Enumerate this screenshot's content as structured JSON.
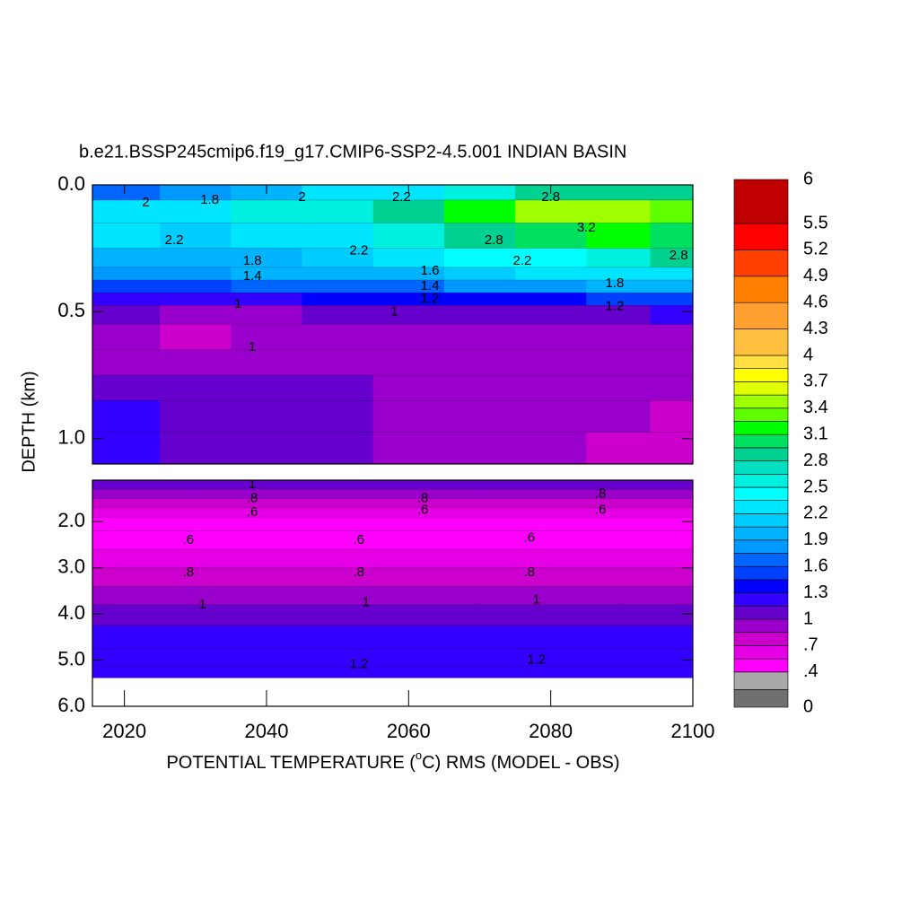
{
  "chart_data": {
    "type": "contour",
    "title": "b.e21.BSSP245cmip6.f19_g17.CMIP6-SSP2-4.5.001 INDIAN BASIN",
    "xlabel": {
      "before": "POTENTIAL TEMPERATURE (",
      "sup": "o",
      "after": "C) RMS (MODEL - OBS)"
    },
    "ylabel": "DEPTH (km)",
    "xlim": [
      2015.5,
      2100
    ],
    "xticks": [
      2020,
      2040,
      2060,
      2080,
      2100
    ],
    "panels": [
      {
        "ylim": [
          0,
          1.1
        ],
        "yticks": [
          {
            "value": 0,
            "label": "0.0"
          },
          {
            "value": 0.5,
            "label": "0.5"
          },
          {
            "value": 1,
            "label": "1.0"
          }
        ],
        "x": [
          2020,
          2030,
          2040,
          2050,
          2060,
          2070,
          2080,
          2090,
          2098
        ],
        "y": [
          0.02,
          0.1,
          0.2,
          0.3,
          0.35,
          0.4,
          0.45,
          0.5,
          0.6,
          0.7,
          0.8,
          0.9,
          1.05
        ],
        "values": [
          [
            1.6,
            1.8,
            2.0,
            2.2,
            2.3,
            2.6,
            2.8,
            2.9,
            2.8
          ],
          [
            2.2,
            2.3,
            2.5,
            2.6,
            2.9,
            3.2,
            3.5,
            3.4,
            3.3
          ],
          [
            2.2,
            2.1,
            2.2,
            2.3,
            2.5,
            2.8,
            3.0,
            3.1,
            3.0
          ],
          [
            2.0,
            2.0,
            2.0,
            2.1,
            2.2,
            2.4,
            2.4,
            2.6,
            2.8
          ],
          [
            1.8,
            1.8,
            1.9,
            1.9,
            2.0,
            2.1,
            2.2,
            2.3,
            2.3
          ],
          [
            1.5,
            1.5,
            1.6,
            1.6,
            1.7,
            1.8,
            1.8,
            1.9,
            1.9
          ],
          [
            1.2,
            1.2,
            1.2,
            1.3,
            1.3,
            1.4,
            1.4,
            1.5,
            1.5
          ],
          [
            1.0,
            0.95,
            0.95,
            1.0,
            1.0,
            1.05,
            1.1,
            1.1,
            1.2
          ],
          [
            0.9,
            0.8,
            0.85,
            0.85,
            0.9,
            0.9,
            0.95,
            0.95,
            0.95
          ],
          [
            0.95,
            0.9,
            0.9,
            0.9,
            0.9,
            0.9,
            0.9,
            0.9,
            0.9
          ],
          [
            1.1,
            1.05,
            1.0,
            1.0,
            0.95,
            0.9,
            0.9,
            0.9,
            0.9
          ],
          [
            1.15,
            1.1,
            1.05,
            1.0,
            0.95,
            0.9,
            0.9,
            0.85,
            0.8
          ],
          [
            1.15,
            1.1,
            1.0,
            1.0,
            0.95,
            0.9,
            0.85,
            0.8,
            0.75
          ]
        ],
        "contour_labels": [
          {
            "x": 2023,
            "y": 0.07,
            "value": 2
          },
          {
            "x": 2032,
            "y": 0.06,
            "value": 1.8
          },
          {
            "x": 2045,
            "y": 0.05,
            "value": 2
          },
          {
            "x": 2059,
            "y": 0.05,
            "value": 2.2
          },
          {
            "x": 2080,
            "y": 0.05,
            "value": 2.8
          },
          {
            "x": 2027,
            "y": 0.22,
            "value": 2.2
          },
          {
            "x": 2053,
            "y": 0.26,
            "value": 2.2
          },
          {
            "x": 2076,
            "y": 0.3,
            "value": 2.2
          },
          {
            "x": 2098,
            "y": 0.28,
            "value": 2.8
          },
          {
            "x": 2072,
            "y": 0.22,
            "value": 2.8
          },
          {
            "x": 2085,
            "y": 0.17,
            "value": 3.2
          },
          {
            "x": 2038,
            "y": 0.3,
            "value": 1.8
          },
          {
            "x": 2038,
            "y": 0.36,
            "value": 1.4
          },
          {
            "x": 2063,
            "y": 0.34,
            "value": 1.6
          },
          {
            "x": 2063,
            "y": 0.4,
            "value": 1.4
          },
          {
            "x": 2063,
            "y": 0.45,
            "value": 1.2
          },
          {
            "x": 2089,
            "y": 0.39,
            "value": 1.8
          },
          {
            "x": 2089,
            "y": 0.48,
            "value": 1.2
          },
          {
            "x": 2036,
            "y": 0.47,
            "value": 1
          },
          {
            "x": 2058,
            "y": 0.5,
            "value": 1
          },
          {
            "x": 2038,
            "y": 0.64,
            "value": 1
          }
        ]
      },
      {
        "ylim": [
          1.1,
          6.0
        ],
        "yticks": [
          {
            "value": 2,
            "label": "2.0"
          },
          {
            "value": 3,
            "label": "3.0"
          },
          {
            "value": 4,
            "label": "4.0"
          },
          {
            "value": 5,
            "label": "5.0"
          },
          {
            "value": 6,
            "label": "6.0"
          }
        ],
        "x": [
          2020,
          2040,
          2060,
          2080,
          2100
        ],
        "y": [
          1.2,
          1.4,
          1.6,
          1.8,
          2.0,
          2.4,
          2.8,
          3.2,
          3.6,
          4.0,
          4.5,
          5.0,
          5.25
        ],
        "values": [
          [
            1.05,
            1.05,
            1.05,
            1.05,
            1.05
          ],
          [
            0.85,
            0.85,
            0.85,
            0.85,
            0.85
          ],
          [
            0.7,
            0.7,
            0.7,
            0.7,
            0.7
          ],
          [
            0.55,
            0.55,
            0.55,
            0.55,
            0.55
          ],
          [
            0.5,
            0.5,
            0.5,
            0.5,
            0.5
          ],
          [
            0.5,
            0.5,
            0.5,
            0.5,
            0.5
          ],
          [
            0.65,
            0.65,
            0.65,
            0.65,
            0.65
          ],
          [
            0.8,
            0.8,
            0.8,
            0.8,
            0.8
          ],
          [
            0.95,
            0.95,
            0.95,
            0.95,
            0.95
          ],
          [
            1.05,
            1.05,
            1.05,
            1.05,
            1.05
          ],
          [
            1.15,
            1.15,
            1.15,
            1.15,
            1.15
          ],
          [
            1.2,
            1.2,
            1.2,
            1.2,
            1.2
          ],
          [
            1.25,
            1.25,
            1.25,
            1.25,
            1.25
          ]
        ],
        "contour_labels": [
          {
            "x": 2038,
            "y": 1.2,
            "value": 1
          },
          {
            "x": 2038,
            "y": 1.5,
            "value": 0.8,
            "label": ".8"
          },
          {
            "x": 2038,
            "y": 1.8,
            "value": 0.6,
            "label": ".6"
          },
          {
            "x": 2062,
            "y": 1.5,
            "value": 0.8,
            "label": ".8"
          },
          {
            "x": 2062,
            "y": 1.75,
            "value": 0.6,
            "label": ".6"
          },
          {
            "x": 2087,
            "y": 1.4,
            "value": 0.8,
            "label": ".8"
          },
          {
            "x": 2087,
            "y": 1.75,
            "value": 0.6,
            "label": ".6"
          },
          {
            "x": 2029,
            "y": 2.4,
            "value": 0.6,
            "label": ".6"
          },
          {
            "x": 2029,
            "y": 3.1,
            "value": 0.8,
            "label": ".8"
          },
          {
            "x": 2031,
            "y": 3.8,
            "value": 1
          },
          {
            "x": 2053,
            "y": 2.4,
            "value": 0.6,
            "label": ".6"
          },
          {
            "x": 2053,
            "y": 3.1,
            "value": 0.8,
            "label": ".8"
          },
          {
            "x": 2054,
            "y": 3.75,
            "value": 1
          },
          {
            "x": 2053,
            "y": 5.1,
            "value": 1.2
          },
          {
            "x": 2077,
            "y": 2.35,
            "value": 0.6,
            "label": ".6"
          },
          {
            "x": 2077,
            "y": 3.1,
            "value": 0.8,
            "label": ".8"
          },
          {
            "x": 2078,
            "y": 3.7,
            "value": 1
          },
          {
            "x": 2078,
            "y": 5.0,
            "value": 1.2
          }
        ]
      }
    ],
    "colorbar": {
      "levels": [
        0,
        0.2,
        0.4,
        0.55,
        0.7,
        0.85,
        1,
        1.15,
        1.3,
        1.45,
        1.6,
        1.75,
        1.9,
        2.05,
        2.2,
        2.35,
        2.5,
        2.65,
        2.8,
        2.95,
        3.1,
        3.25,
        3.4,
        3.55,
        3.7,
        3.85,
        4,
        4.3,
        4.6,
        4.9,
        5.2,
        5.5,
        6
      ],
      "colors": [
        "#707070",
        "#a8a8a8",
        "#ff00ff",
        "#e600e6",
        "#cc00cc",
        "#9900cc",
        "#6600cc",
        "#3300ff",
        "#0000ff",
        "#0040ff",
        "#0066ff",
        "#0099ff",
        "#00b3ff",
        "#00ccff",
        "#00e5ff",
        "#00ffff",
        "#00f0e0",
        "#00e0c0",
        "#00d090",
        "#00e060",
        "#00ff00",
        "#60ff00",
        "#a0ff00",
        "#e0ff00",
        "#ffff00",
        "#ffe040",
        "#ffc040",
        "#ffa030",
        "#ff8000",
        "#ff4000",
        "#ff0000",
        "#c00000"
      ],
      "ticks": [
        0,
        {
          "value": 0.4,
          "label": ".4"
        },
        {
          "value": 0.7,
          "label": ".7"
        },
        1,
        1.3,
        1.6,
        1.9,
        2.2,
        2.5,
        2.8,
        3.1,
        3.4,
        3.7,
        4,
        4.3,
        4.6,
        4.9,
        5.2,
        5.5,
        6
      ]
    }
  }
}
